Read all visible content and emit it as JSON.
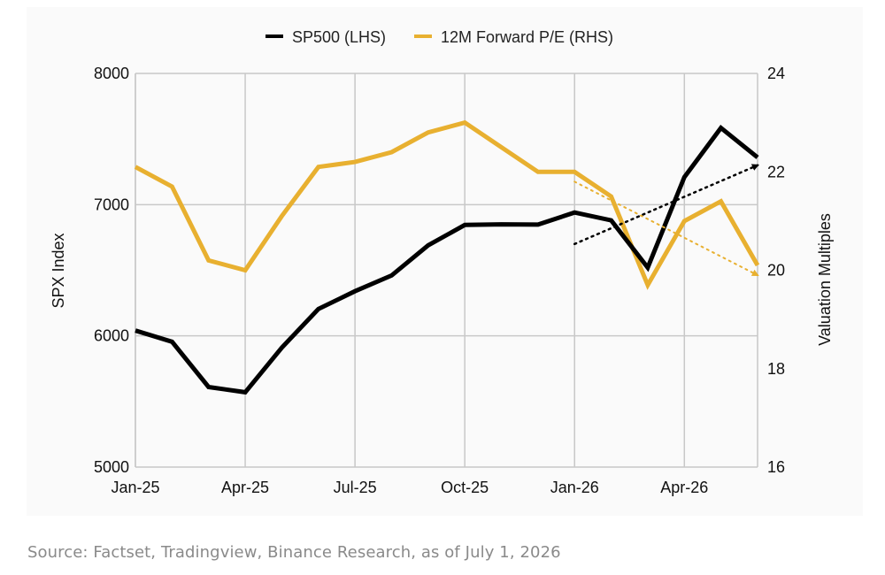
{
  "source": "Source: Factset, Tradingview, Binance Research, as of July 1, 2026",
  "colors": {
    "sp500": "#000000",
    "pe": "#e8b030",
    "grid": "#c8c8c8"
  },
  "chart_data": {
    "type": "line",
    "x": [
      "Jan-25",
      "Feb-25",
      "Mar-25",
      "Apr-25",
      "May-25",
      "Jun-25",
      "Jul-25",
      "Aug-25",
      "Sep-25",
      "Oct-25",
      "Nov-25",
      "Dec-25",
      "Jan-26",
      "Feb-26",
      "Mar-26",
      "Apr-26",
      "May-26",
      "Jun-26"
    ],
    "x_tick_labels": [
      "Jan-25",
      "Apr-25",
      "Jul-25",
      "Oct-25",
      "Jan-26",
      "Apr-26"
    ],
    "ylabel": "SPX Index",
    "y2label": "Valuation Multiples",
    "ylim": [
      5000,
      8000
    ],
    "y_ticks": [
      5000,
      6000,
      7000,
      8000
    ],
    "y2lim": [
      16,
      24
    ],
    "y2_ticks": [
      16,
      18,
      20,
      22,
      24
    ],
    "grid": true,
    "legend_position": "top-center",
    "series": [
      {
        "name": "SP500 (LHS)",
        "axis": "left",
        "values": [
          6040,
          5955,
          5610,
          5570,
          5910,
          6205,
          6340,
          6460,
          6690,
          6845,
          6850,
          6848,
          6940,
          6880,
          6520,
          7210,
          7585,
          7360
        ]
      },
      {
        "name": "12M Forward P/E (RHS)",
        "axis": "right",
        "values": [
          22.1,
          21.7,
          20.2,
          20.0,
          21.1,
          22.1,
          22.2,
          22.4,
          22.8,
          23.0,
          22.5,
          22.0,
          22.0,
          21.5,
          19.7,
          21.0,
          21.4,
          20.1
        ]
      }
    ],
    "trend_lines": [
      {
        "series": "SP500 (LHS)",
        "axis": "left",
        "from": [
          "Jan-26",
          6700
        ],
        "to": [
          "Jun-26",
          7300
        ]
      },
      {
        "series": "12M Forward P/E (RHS)",
        "axis": "right",
        "from": [
          "Jan-26",
          21.8
        ],
        "to": [
          "Jun-26",
          19.9
        ]
      }
    ]
  }
}
